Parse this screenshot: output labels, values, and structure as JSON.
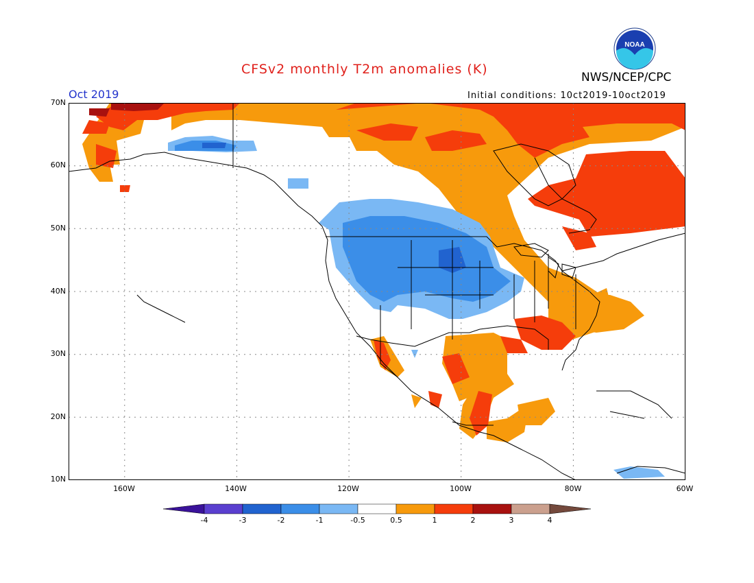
{
  "header": {
    "title": "CFSv2 monthly T2m anomalies (K)",
    "agency": "NWS/NCEP/CPC",
    "month": "Oct 2019",
    "initial_conditions": "Initial conditions: 10ct2019-10oct2019",
    "logo_text": "NOAA"
  },
  "map": {
    "lat_labels": [
      "70N",
      "60N",
      "50N",
      "40N",
      "30N",
      "20N",
      "10N"
    ],
    "lon_labels": [
      "160W",
      "140W",
      "120W",
      "100W",
      "80W",
      "60W"
    ],
    "lat_range": [
      10,
      70
    ],
    "lon_range": [
      -170,
      -60
    ]
  },
  "colorbar": {
    "tick_labels": [
      "-4",
      "-3",
      "-2",
      "-1",
      "-0.5",
      "0.5",
      "1",
      "2",
      "3",
      "4"
    ],
    "colors": [
      "#3a129a",
      "#5a3fcf",
      "#2163cf",
      "#3b8ee8",
      "#7ab8f4",
      "#ffffff",
      "#f79a0c",
      "#f53d0b",
      "#a8110f",
      "#cba08e",
      "#74493c"
    ]
  },
  "anomaly_colors": {
    "cold_strong": "#2163cf",
    "cold": "#3b8ee8",
    "cold_weak": "#7ab8f4",
    "warm_weak": "#f79a0c",
    "warm": "#f53d0b",
    "warm_strong": "#a8110f"
  }
}
